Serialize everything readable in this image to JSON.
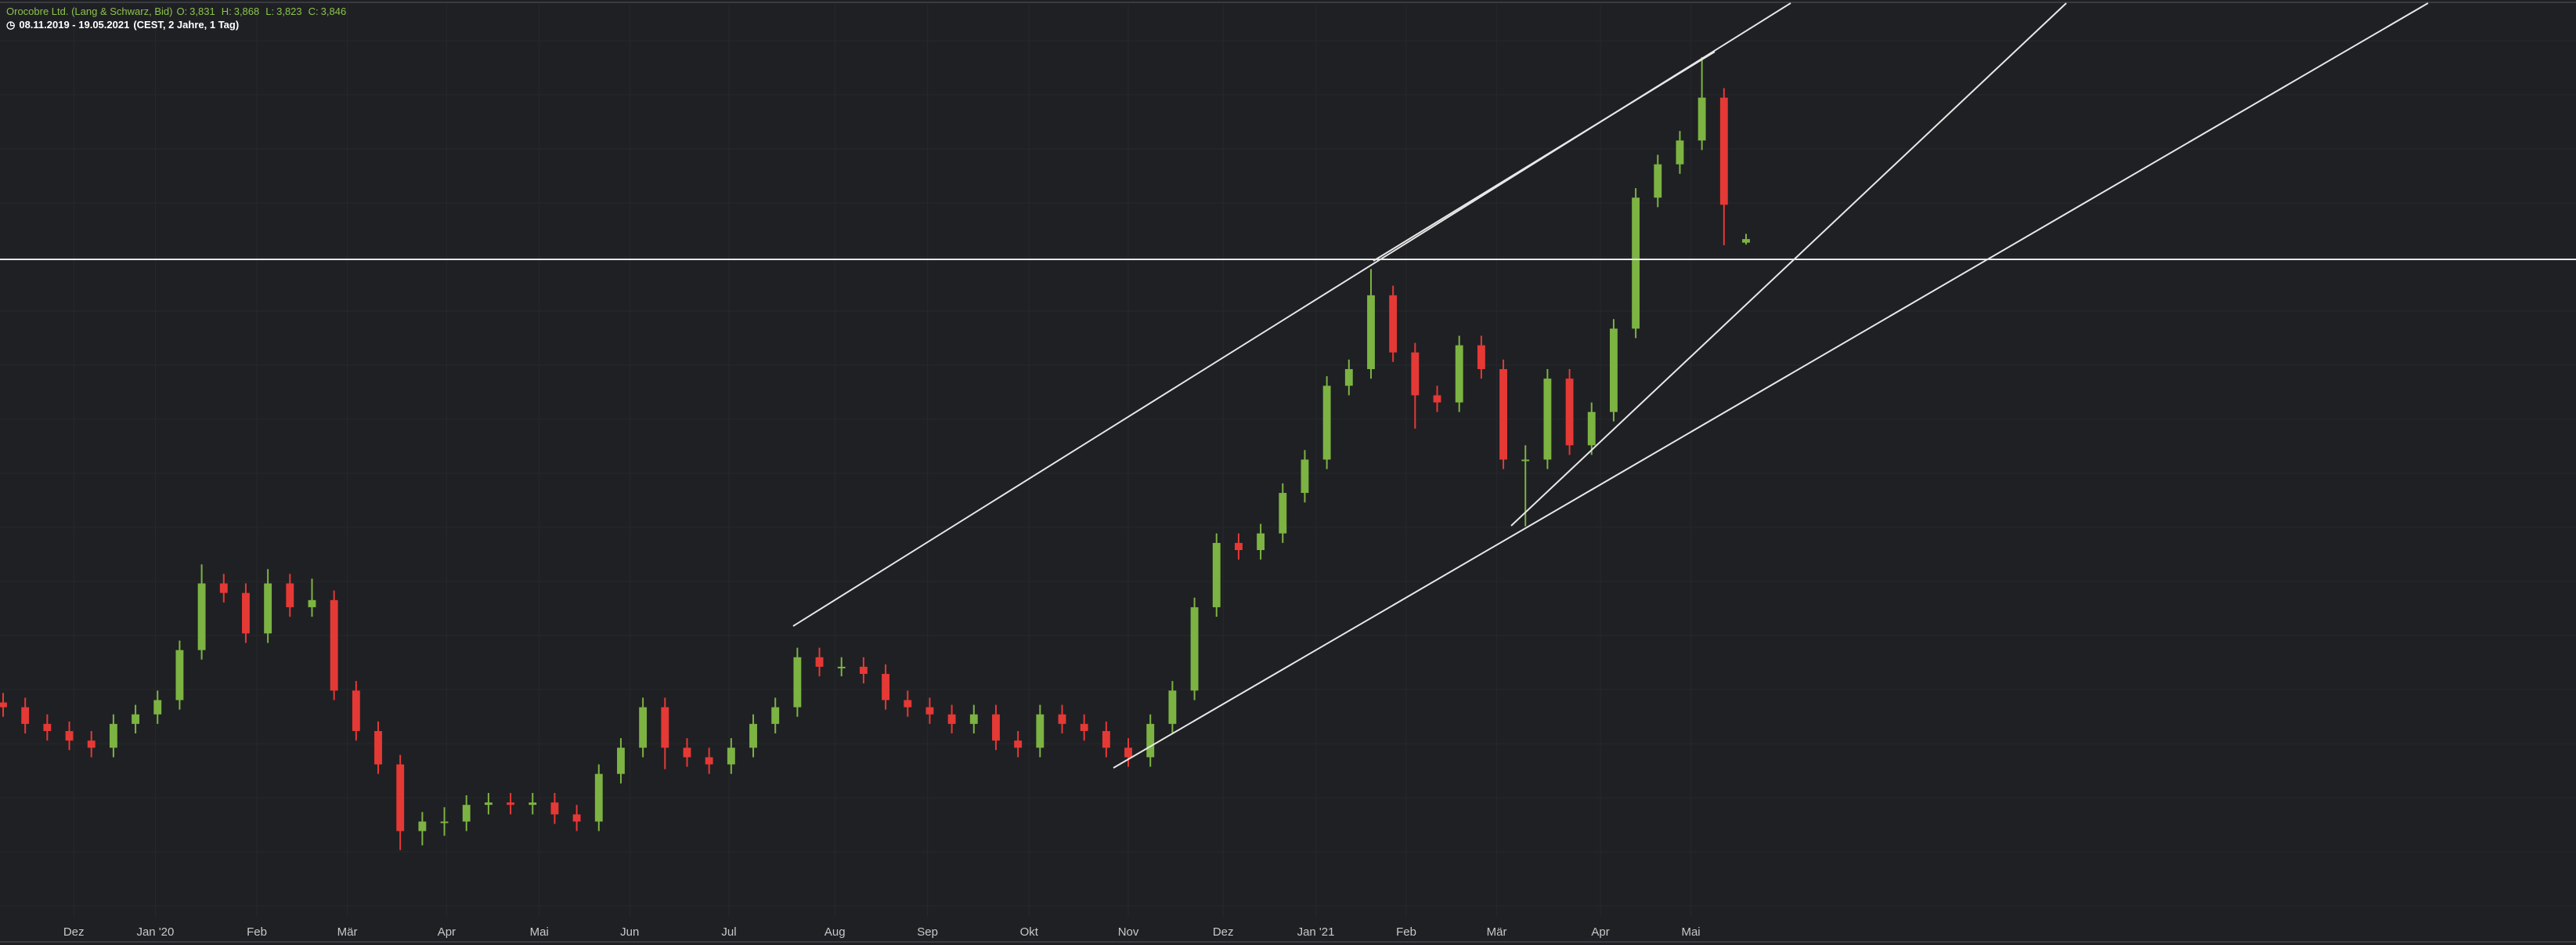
{
  "chart_data": {
    "type": "candlestick",
    "series": [
      {
        "name": "Orocobre Ltd. (Lang & Schwarz, Bid)",
        "up_color": "#7cb342",
        "down_color": "#e53935",
        "open": [
          1.9,
          1.88,
          1.81,
          1.78,
          1.74,
          1.71,
          1.81,
          1.85,
          1.91,
          2.12,
          2.4,
          2.36,
          2.19,
          2.4,
          2.3,
          2.33,
          1.95,
          1.78,
          1.64,
          1.36,
          1.4,
          1.4,
          1.47,
          1.48,
          1.47,
          1.48,
          1.43,
          1.4,
          1.6,
          1.71,
          1.88,
          1.71,
          1.67,
          1.64,
          1.71,
          1.81,
          1.88,
          2.09,
          2.05,
          2.05,
          2.02,
          1.91,
          1.88,
          1.85,
          1.81,
          1.85,
          1.74,
          1.71,
          1.85,
          1.81,
          1.78,
          1.71,
          1.67,
          1.81,
          1.95,
          2.3,
          2.57,
          2.54,
          2.61,
          2.78,
          2.92,
          3.23,
          3.3,
          3.61,
          3.37,
          3.19,
          3.16,
          3.4,
          3.3,
          2.92,
          2.92,
          3.26,
          2.98,
          3.12,
          3.47,
          4.02,
          4.16,
          4.26,
          4.44,
          3.831
        ],
        "high": [
          1.94,
          1.92,
          1.85,
          1.82,
          1.78,
          1.85,
          1.89,
          1.95,
          2.16,
          2.48,
          2.44,
          2.4,
          2.46,
          2.44,
          2.42,
          2.37,
          1.99,
          1.82,
          1.68,
          1.44,
          1.46,
          1.51,
          1.52,
          1.52,
          1.52,
          1.52,
          1.47,
          1.64,
          1.75,
          1.92,
          1.92,
          1.75,
          1.71,
          1.75,
          1.85,
          1.92,
          2.13,
          2.13,
          2.09,
          2.09,
          2.06,
          1.95,
          1.92,
          1.89,
          1.89,
          1.89,
          1.78,
          1.89,
          1.89,
          1.85,
          1.82,
          1.75,
          1.85,
          1.99,
          2.34,
          2.61,
          2.61,
          2.65,
          2.82,
          2.96,
          3.27,
          3.34,
          3.72,
          3.65,
          3.41,
          3.23,
          3.44,
          3.44,
          3.34,
          2.98,
          3.3,
          3.3,
          3.16,
          3.51,
          4.06,
          4.2,
          4.3,
          4.61,
          4.48,
          3.868
        ],
        "low": [
          1.84,
          1.77,
          1.74,
          1.7,
          1.67,
          1.67,
          1.77,
          1.81,
          1.87,
          2.08,
          2.32,
          2.15,
          2.15,
          2.26,
          2.26,
          1.91,
          1.74,
          1.6,
          1.28,
          1.3,
          1.34,
          1.36,
          1.43,
          1.43,
          1.43,
          1.39,
          1.36,
          1.36,
          1.56,
          1.67,
          1.62,
          1.63,
          1.6,
          1.6,
          1.67,
          1.77,
          1.84,
          2.01,
          2.01,
          1.98,
          1.87,
          1.84,
          1.81,
          1.77,
          1.77,
          1.7,
          1.67,
          1.67,
          1.77,
          1.74,
          1.67,
          1.63,
          1.63,
          1.77,
          1.91,
          2.26,
          2.5,
          2.5,
          2.57,
          2.74,
          2.88,
          3.19,
          3.26,
          3.33,
          3.05,
          3.12,
          3.12,
          3.26,
          2.88,
          2.64,
          2.88,
          2.94,
          2.94,
          3.08,
          3.43,
          3.98,
          4.12,
          4.22,
          3.82,
          3.823
        ],
        "close": [
          1.88,
          1.81,
          1.78,
          1.74,
          1.71,
          1.81,
          1.85,
          1.91,
          2.12,
          2.4,
          2.36,
          2.19,
          2.4,
          2.3,
          2.33,
          1.95,
          1.78,
          1.64,
          1.36,
          1.4,
          1.4,
          1.47,
          1.48,
          1.47,
          1.48,
          1.43,
          1.4,
          1.6,
          1.71,
          1.88,
          1.71,
          1.67,
          1.64,
          1.71,
          1.81,
          1.88,
          2.09,
          2.05,
          2.05,
          2.02,
          1.91,
          1.88,
          1.85,
          1.81,
          1.85,
          1.74,
          1.71,
          1.85,
          1.81,
          1.78,
          1.71,
          1.67,
          1.81,
          1.95,
          2.3,
          2.57,
          2.54,
          2.61,
          2.78,
          2.92,
          3.23,
          3.3,
          3.61,
          3.37,
          3.19,
          3.16,
          3.4,
          3.3,
          2.92,
          2.92,
          3.26,
          2.98,
          3.12,
          3.47,
          4.02,
          4.16,
          4.26,
          4.44,
          3.99,
          3.846
        ]
      }
    ],
    "header_items": [
      {
        "key": "O:",
        "text": "3,831"
      },
      {
        "key": "H:",
        "text": "3,868"
      },
      {
        "key": "L:",
        "text": "3,823"
      },
      {
        "key": "C:",
        "text": "3,846"
      }
    ],
    "period": "08.11.2019 - 19.05.2021",
    "period_note": "(CEST, 2 Jahre, 1 Tag)",
    "ylim": [
      1.0,
      4.85
    ],
    "xlim": [
      0,
      79
    ],
    "xticks": [
      {
        "value": 3.2,
        "label": "Dez"
      },
      {
        "value": 6.9,
        "label": "Jan '20"
      },
      {
        "value": 11.5,
        "label": "Feb"
      },
      {
        "value": 15.6,
        "label": "Mär"
      },
      {
        "value": 20.1,
        "label": "Apr"
      },
      {
        "value": 24.3,
        "label": "Mai"
      },
      {
        "value": 28.4,
        "label": "Jun"
      },
      {
        "value": 32.9,
        "label": "Jul"
      },
      {
        "value": 37.7,
        "label": "Aug"
      },
      {
        "value": 41.9,
        "label": "Sep"
      },
      {
        "value": 46.5,
        "label": "Okt"
      },
      {
        "value": 51.0,
        "label": "Nov"
      },
      {
        "value": 55.3,
        "label": "Dez"
      },
      {
        "value": 59.5,
        "label": "Jan '21"
      },
      {
        "value": 63.6,
        "label": "Feb"
      },
      {
        "value": 67.7,
        "label": "Mär"
      },
      {
        "value": 72.4,
        "label": "Apr"
      },
      {
        "value": 76.5,
        "label": "Mai"
      }
    ],
    "grid": true
  }
}
